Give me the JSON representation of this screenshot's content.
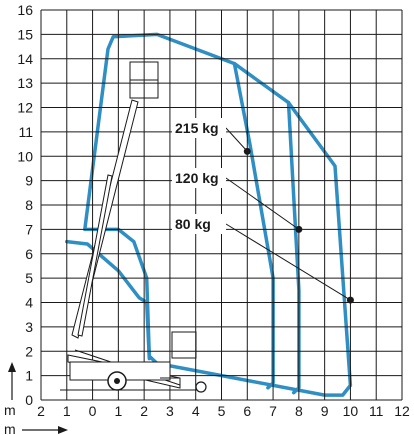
{
  "chart_data": {
    "type": "area",
    "title": "",
    "subtitle": "",
    "xlabel": "m",
    "ylabel": "m",
    "x_ticks": [
      "2",
      "1",
      "0",
      "1",
      "2",
      "3",
      "4",
      "5",
      "6",
      "7",
      "8",
      "9",
      "10",
      "11",
      "12"
    ],
    "y_ticks": [
      "0",
      "1",
      "2",
      "3",
      "4",
      "5",
      "6",
      "7",
      "8",
      "9",
      "10",
      "11",
      "12",
      "13",
      "14",
      "15",
      "16"
    ],
    "xlim": [
      -2,
      12
    ],
    "ylim": [
      0,
      16
    ],
    "grid": true,
    "legend": "none",
    "colors": {
      "envelope": "#2f8fc4",
      "grid": "#1a1a1a",
      "text": "#1a1a1a"
    },
    "series": [
      {
        "name": "80 kg",
        "label_point": [
          10,
          4.1
        ],
        "envelope": [
          [
            -0.3,
            7
          ],
          [
            0.6,
            14.4
          ],
          [
            0.8,
            14.9
          ],
          [
            2.5,
            15.0
          ],
          [
            5.5,
            13.8
          ],
          [
            7.6,
            12.2
          ],
          [
            9.4,
            9.6
          ],
          [
            10.0,
            0.6
          ],
          [
            9.7,
            0.2
          ],
          [
            9.0,
            0.2
          ],
          [
            2.5,
            1.5
          ],
          [
            2.2,
            1.8
          ],
          [
            2.1,
            5.0
          ],
          [
            1.6,
            6.5
          ],
          [
            1.0,
            7.0
          ],
          [
            -0.3,
            7
          ]
        ]
      },
      {
        "name": "120 kg",
        "label_point": [
          8,
          7
        ],
        "envelope": [
          [
            7.6,
            12.2
          ],
          [
            8.0,
            4.5
          ],
          [
            8.0,
            0.5
          ],
          [
            7.8,
            0.3
          ]
        ]
      },
      {
        "name": "215 kg",
        "label_point": [
          6,
          10.2
        ],
        "envelope": [
          [
            5.5,
            13.8
          ],
          [
            6.1,
            10.5
          ],
          [
            7.0,
            5.0
          ],
          [
            7.0,
            0.7
          ],
          [
            6.8,
            0.5
          ]
        ]
      },
      {
        "name": "",
        "envelope": [
          [
            -1.0,
            6.5
          ],
          [
            -0.2,
            6.4
          ],
          [
            1.0,
            5.3
          ],
          [
            1.8,
            4.2
          ],
          [
            2.1,
            4.0
          ],
          [
            2.2,
            1.7
          ]
        ]
      }
    ],
    "annotations": [
      "215 kg",
      "120 kg",
      "80 kg"
    ]
  }
}
